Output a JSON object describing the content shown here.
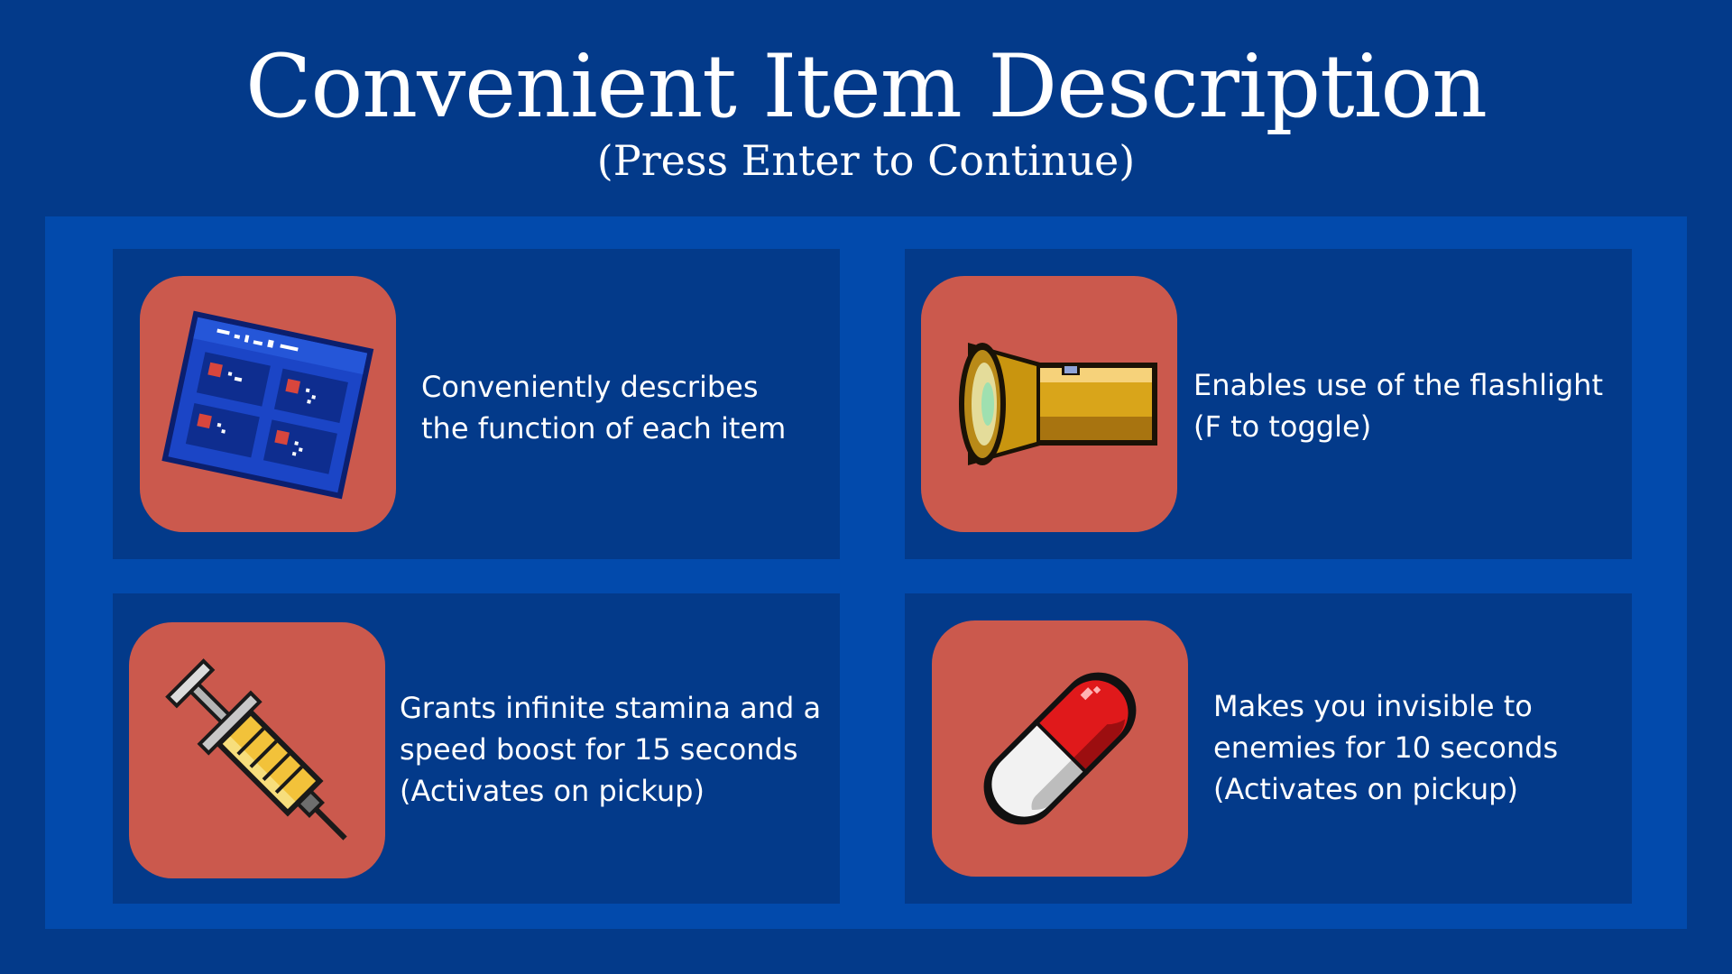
{
  "title": "Convenient Item Description",
  "subtitle": "(Press Enter to Continue)",
  "colors": {
    "background": "#033a8a",
    "panel": "#024aac",
    "card": "#033a8a",
    "icon_tile": "#cb594d",
    "text": "#ffffff"
  },
  "items": [
    {
      "icon": "item-guide-map-icon",
      "description": "Conveniently describes\nthe function of each item"
    },
    {
      "icon": "flashlight-icon",
      "description": "Enables use of the flashlight\n(F to toggle)"
    },
    {
      "icon": "syringe-icon",
      "description": "Grants infinite stamina and a\nspeed boost for 15 seconds\n(Activates on pickup)"
    },
    {
      "icon": "pill-icon",
      "description": "Makes you invisible to\nenemies for 10 seconds\n(Activates on pickup)"
    }
  ]
}
